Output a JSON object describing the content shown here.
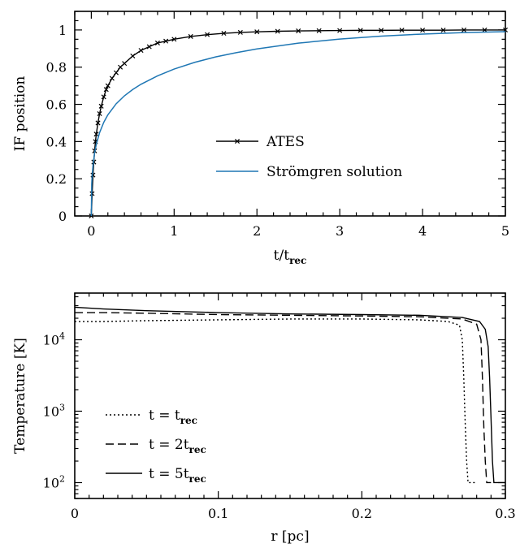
{
  "chart_data": [
    {
      "type": "line",
      "title": "",
      "xlabel": "t/t",
      "xlabel_sub": "rec",
      "ylabel": "IF position",
      "xlim": [
        -0.2,
        5
      ],
      "ylim": [
        0,
        1.1
      ],
      "xticks": [
        "0",
        "1",
        "2",
        "3",
        "4",
        "5"
      ],
      "yticks": [
        "0",
        "0.2",
        "0.4",
        "0.6",
        "0.8",
        "1"
      ],
      "legend_position": "center-right",
      "series": [
        {
          "name": "ATES",
          "color": "#000000",
          "marker": "x",
          "x": [
            0,
            0.01,
            0.02,
            0.03,
            0.04,
            0.05,
            0.06,
            0.08,
            0.1,
            0.12,
            0.15,
            0.18,
            0.2,
            0.25,
            0.3,
            0.35,
            0.4,
            0.5,
            0.6,
            0.7,
            0.8,
            0.9,
            1.0,
            1.2,
            1.4,
            1.6,
            1.8,
            2.0,
            2.25,
            2.5,
            2.75,
            3.0,
            3.25,
            3.5,
            3.75,
            4.0,
            4.25,
            4.5,
            4.75,
            5.0
          ],
          "y": [
            0.0,
            0.12,
            0.22,
            0.29,
            0.35,
            0.4,
            0.44,
            0.5,
            0.55,
            0.59,
            0.64,
            0.68,
            0.7,
            0.74,
            0.77,
            0.8,
            0.82,
            0.86,
            0.89,
            0.91,
            0.93,
            0.94,
            0.95,
            0.965,
            0.975,
            0.982,
            0.987,
            0.99,
            0.993,
            0.995,
            0.996,
            0.997,
            0.998,
            0.998,
            0.999,
            0.999,
            0.999,
            1.0,
            1.0,
            1.0
          ]
        },
        {
          "name": "Strömgren solution",
          "color": "#1f77b4",
          "marker": "none",
          "x": [
            0,
            0.005,
            0.01,
            0.02,
            0.04,
            0.06,
            0.1,
            0.15,
            0.2,
            0.3,
            0.4,
            0.5,
            0.6,
            0.8,
            1.0,
            1.25,
            1.5,
            1.75,
            2.0,
            2.5,
            3.0,
            3.5,
            4.0,
            4.5,
            5.0
          ],
          "y": [
            0.0,
            0.171,
            0.215,
            0.27,
            0.339,
            0.384,
            0.448,
            0.503,
            0.544,
            0.603,
            0.646,
            0.68,
            0.708,
            0.753,
            0.79,
            0.826,
            0.855,
            0.878,
            0.898,
            0.929,
            0.951,
            0.967,
            0.978,
            0.986,
            0.991
          ]
        }
      ]
    },
    {
      "type": "line",
      "title": "",
      "xlabel": "r [pc]",
      "ylabel": "Temperature [K]",
      "yscale": "log",
      "xlim": [
        0,
        0.3
      ],
      "ylim": [
        60,
        45000
      ],
      "xticks": [
        "0",
        "0.1",
        "0.2",
        "0.3"
      ],
      "yticks": [
        {
          "base": "10",
          "exp": "2",
          "value": 100
        },
        {
          "base": "10",
          "exp": "3",
          "value": 1000
        },
        {
          "base": "10",
          "exp": "4",
          "value": 10000
        }
      ],
      "legend_position": "bottom-left",
      "series": [
        {
          "name_prefix": "t  =  t",
          "name_sub": "rec",
          "dash": "2,3",
          "x": [
            0,
            0.02,
            0.05,
            0.1,
            0.15,
            0.2,
            0.24,
            0.26,
            0.268,
            0.27,
            0.271,
            0.272,
            0.273,
            0.274,
            0.276,
            0.28
          ],
          "y": [
            18000,
            18000,
            18500,
            19000,
            19500,
            19500,
            19000,
            18000,
            16000,
            10000,
            3000,
            700,
            200,
            100,
            100,
            100
          ]
        },
        {
          "name_prefix": "t  =  2t",
          "name_sub": "rec",
          "dash": "10,5",
          "x": [
            0,
            0.02,
            0.05,
            0.1,
            0.15,
            0.2,
            0.24,
            0.27,
            0.28,
            0.283,
            0.284,
            0.285,
            0.286,
            0.287,
            0.29
          ],
          "y": [
            24000,
            24000,
            23500,
            22500,
            22000,
            21500,
            21000,
            19500,
            16500,
            10000,
            3000,
            600,
            200,
            100,
            100
          ]
        },
        {
          "name_prefix": "t  =  5t",
          "name_sub": "rec",
          "dash": "",
          "x": [
            0,
            0.02,
            0.05,
            0.1,
            0.15,
            0.2,
            0.24,
            0.27,
            0.282,
            0.286,
            0.288,
            0.289,
            0.29,
            0.291,
            0.292,
            0.3
          ],
          "y": [
            28500,
            27000,
            25500,
            24000,
            23000,
            22500,
            22000,
            20500,
            18000,
            14000,
            8000,
            3000,
            800,
            200,
            100,
            100
          ]
        }
      ]
    }
  ]
}
